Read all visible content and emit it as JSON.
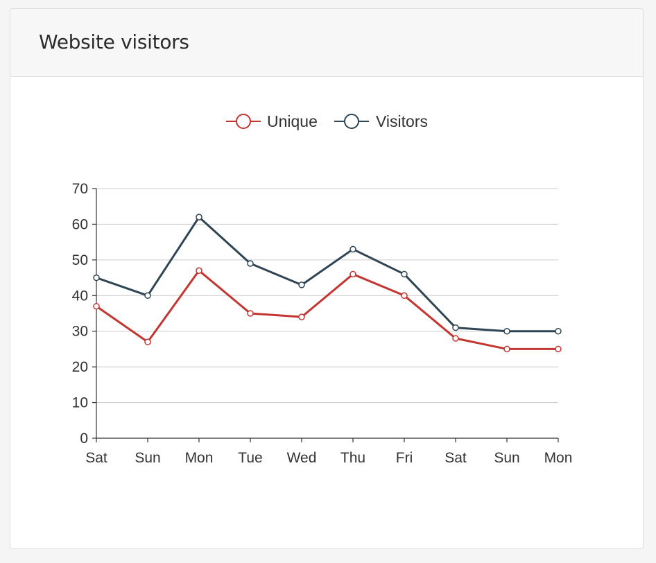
{
  "card": {
    "title": "Website visitors"
  },
  "chart_data": {
    "type": "line",
    "title": "",
    "xlabel": "",
    "ylabel": "",
    "categories": [
      "Sat",
      "Sun",
      "Mon",
      "Tue",
      "Wed",
      "Thu",
      "Fri",
      "Sat",
      "Sun",
      "Mon"
    ],
    "ylim": [
      0,
      70
    ],
    "yticks": [
      0,
      10,
      20,
      30,
      40,
      50,
      60,
      70
    ],
    "grid": true,
    "legend_position": "top-center",
    "series": [
      {
        "name": "Unique",
        "color": "#c23531",
        "values": [
          37,
          27,
          47,
          35,
          34,
          46,
          40,
          28,
          25,
          25
        ]
      },
      {
        "name": "Visitors",
        "color": "#2f4554",
        "values": [
          45,
          40,
          62,
          49,
          43,
          53,
          46,
          31,
          30,
          30
        ]
      }
    ]
  }
}
